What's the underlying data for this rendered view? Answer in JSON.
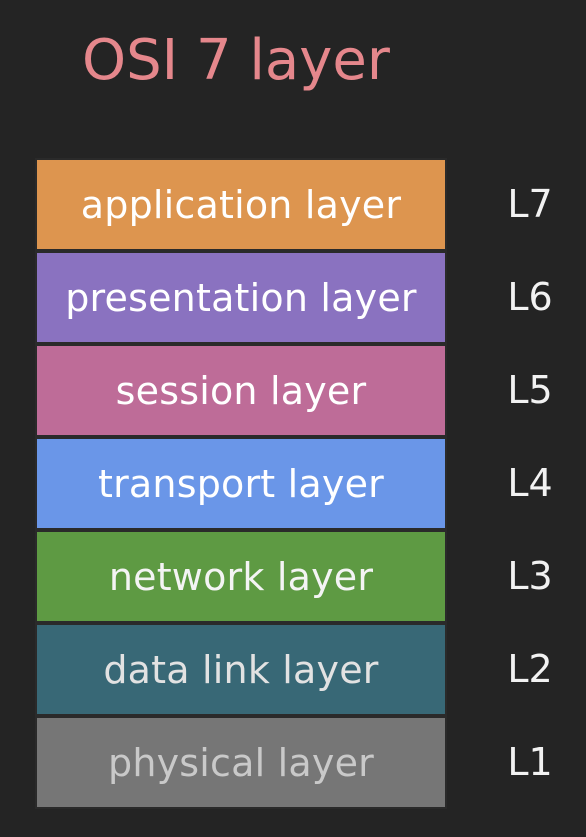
{
  "title": {
    "text": "OSI 7 layer",
    "color": "#e5878c"
  },
  "layers": [
    {
      "name": "application layer",
      "code": "L7",
      "color": "#dd954f",
      "text_color": "#ffffff"
    },
    {
      "name": "presentation layer",
      "code": "L6",
      "color": "#8a72c0",
      "text_color": "#ffffff"
    },
    {
      "name": "session layer",
      "code": "L5",
      "color": "#be6c98",
      "text_color": "#ffffff"
    },
    {
      "name": "transport layer",
      "code": "L4",
      "color": "#6a96e8",
      "text_color": "#ffffff"
    },
    {
      "name": "network layer",
      "code": "L3",
      "color": "#5e9a43",
      "text_color": "#f4f4f4"
    },
    {
      "name": "data link layer",
      "code": "L2",
      "color": "#386876",
      "text_color": "#e2e2e2"
    },
    {
      "name": "physical layer",
      "code": "L1",
      "color": "#767676",
      "text_color": "#c9c9c9"
    }
  ]
}
